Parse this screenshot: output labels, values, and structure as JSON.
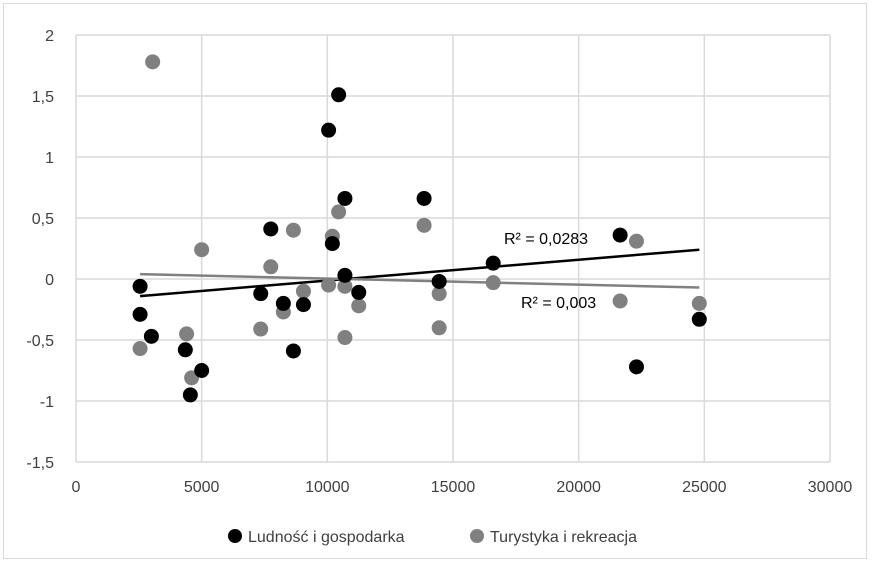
{
  "chart_data": {
    "type": "scatter",
    "xlim": [
      0,
      30000
    ],
    "ylim": [
      -1.5,
      2
    ],
    "x_ticks": [
      0,
      5000,
      10000,
      15000,
      20000,
      25000,
      30000
    ],
    "y_ticks": [
      2,
      1.5,
      1,
      0.5,
      0,
      -0.5,
      -1,
      -1.5
    ],
    "x_tick_labels": [
      "0",
      "5000",
      "10000",
      "15000",
      "20000",
      "25000",
      "30000"
    ],
    "y_tick_labels": [
      "2",
      "1,5",
      "1",
      "0,5",
      "0",
      "-0,5",
      "-1",
      "-1,5"
    ],
    "grid": true,
    "legend_position": "bottom",
    "series": [
      {
        "name": "Ludność i gospodarka",
        "color": "#000000",
        "points": [
          [
            2550,
            -0.06
          ],
          [
            2550,
            -0.29
          ],
          [
            3000,
            -0.47
          ],
          [
            4350,
            -0.58
          ],
          [
            4550,
            -0.95
          ],
          [
            5000,
            -0.75
          ],
          [
            7350,
            -0.12
          ],
          [
            7750,
            0.41
          ],
          [
            8250,
            -0.2
          ],
          [
            8650,
            -0.59
          ],
          [
            9050,
            -0.21
          ],
          [
            10050,
            1.22
          ],
          [
            10200,
            0.29
          ],
          [
            10450,
            1.51
          ],
          [
            10700,
            0.66
          ],
          [
            10700,
            0.03
          ],
          [
            11250,
            -0.11
          ],
          [
            13850,
            0.66
          ],
          [
            14450,
            -0.02
          ],
          [
            16600,
            0.13
          ],
          [
            21650,
            0.36
          ],
          [
            22300,
            -0.72
          ],
          [
            24800,
            -0.33
          ]
        ],
        "trendline": {
          "x": [
            2550,
            24800
          ],
          "y": [
            -0.14,
            0.24
          ],
          "label": "R² = 0,0283"
        }
      },
      {
        "name": "Turystyka i rekreacja",
        "color": "#808080",
        "points": [
          [
            2550,
            -0.57
          ],
          [
            3050,
            1.78
          ],
          [
            4400,
            -0.45
          ],
          [
            4600,
            -0.81
          ],
          [
            5000,
            0.24
          ],
          [
            7350,
            -0.41
          ],
          [
            7750,
            0.1
          ],
          [
            8250,
            -0.27
          ],
          [
            8650,
            0.4
          ],
          [
            9050,
            -0.1
          ],
          [
            10050,
            -0.05
          ],
          [
            10200,
            0.35
          ],
          [
            10450,
            0.55
          ],
          [
            10700,
            -0.06
          ],
          [
            10700,
            -0.48
          ],
          [
            11250,
            -0.22
          ],
          [
            13850,
            0.44
          ],
          [
            14450,
            -0.12
          ],
          [
            14450,
            -0.4
          ],
          [
            16600,
            -0.03
          ],
          [
            21650,
            -0.18
          ],
          [
            22300,
            0.31
          ],
          [
            24800,
            -0.2
          ]
        ],
        "trendline": {
          "x": [
            2550,
            24800
          ],
          "y": [
            0.04,
            -0.07
          ],
          "label": "R² = 0,003"
        }
      }
    ]
  }
}
